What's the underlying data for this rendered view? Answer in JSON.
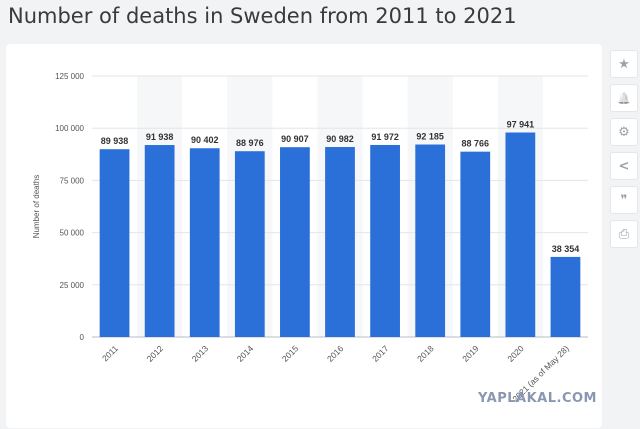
{
  "header": {
    "title": "Number of deaths in Sweden from 2011 to 2021"
  },
  "chart_data": {
    "type": "bar",
    "title": "Number of deaths in Sweden from 2011 to 2021",
    "xlabel": "",
    "ylabel": "Number of deaths",
    "ylim": [
      0,
      125000
    ],
    "yticks": [
      0,
      25000,
      50000,
      75000,
      100000,
      125000
    ],
    "ytick_labels": [
      "0",
      "25 000",
      "50 000",
      "75 000",
      "100 000",
      "125 000"
    ],
    "categories": [
      "2011",
      "2012",
      "2013",
      "2014",
      "2015",
      "2016",
      "2017",
      "2018",
      "2019",
      "2020",
      "2021 (as of May 28)"
    ],
    "values": [
      89938,
      91938,
      90402,
      88976,
      90907,
      90982,
      91972,
      92185,
      88766,
      97941,
      38354
    ],
    "value_labels": [
      "89 938",
      "91 938",
      "90 402",
      "88 976",
      "90 907",
      "90 982",
      "91 972",
      "92 185",
      "88 766",
      "97 941",
      "38 354"
    ],
    "bar_color": "#2b6fd9",
    "grid": true,
    "legend": "none"
  },
  "toolbar": {
    "items": [
      {
        "icon": "star-icon",
        "glyph": "★"
      },
      {
        "icon": "bell-icon",
        "glyph": "🔔"
      },
      {
        "icon": "gear-icon",
        "glyph": "⚙"
      },
      {
        "icon": "share-icon",
        "glyph": "<"
      },
      {
        "icon": "quote-icon",
        "glyph": "❞"
      },
      {
        "icon": "print-icon",
        "glyph": "⎙"
      }
    ]
  },
  "watermark": {
    "text": "YAPLAKAL.COM"
  }
}
